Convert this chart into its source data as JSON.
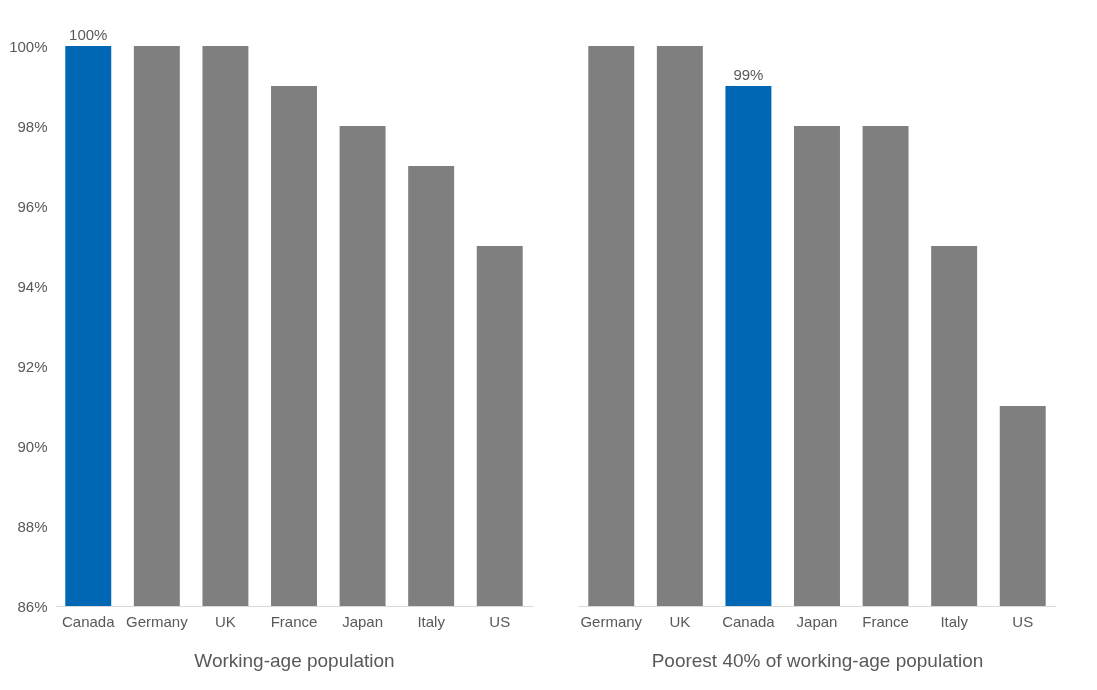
{
  "chart_data": [
    {
      "type": "bar",
      "categories": [
        "Canada",
        "Germany",
        "UK",
        "France",
        "Japan",
        "Italy",
        "US"
      ],
      "values": [
        100,
        100,
        100,
        99,
        98,
        97,
        95
      ],
      "colors": [
        "#0067b4",
        "#7f7f7f",
        "#7f7f7f",
        "#7f7f7f",
        "#7f7f7f",
        "#7f7f7f",
        "#7f7f7f"
      ],
      "value_labels": [
        "100%",
        null,
        null,
        null,
        null,
        null,
        null
      ],
      "xlabel": "Working-age population",
      "ylim": [
        86,
        100
      ],
      "yticks": [
        {
          "value": 86,
          "label": "86%"
        },
        {
          "value": 88,
          "label": "88%"
        },
        {
          "value": 90,
          "label": "90%"
        },
        {
          "value": 92,
          "label": "92%"
        },
        {
          "value": 94,
          "label": "94%"
        },
        {
          "value": 96,
          "label": "96%"
        },
        {
          "value": 98,
          "label": "98%"
        },
        {
          "value": 100,
          "label": "100%"
        }
      ],
      "grid": false
    },
    {
      "type": "bar",
      "categories": [
        "Germany",
        "UK",
        "Canada",
        "Japan",
        "France",
        "Italy",
        "US"
      ],
      "values": [
        100,
        100,
        99,
        98,
        98,
        95,
        91
      ],
      "colors": [
        "#7f7f7f",
        "#7f7f7f",
        "#0067b4",
        "#7f7f7f",
        "#7f7f7f",
        "#7f7f7f",
        "#7f7f7f"
      ],
      "value_labels": [
        null,
        null,
        "99%",
        null,
        null,
        null,
        null
      ],
      "xlabel": "Poorest 40% of working-age population",
      "ylim": [
        86,
        100
      ],
      "grid": false,
      "tick_labels": "x"
    }
  ]
}
